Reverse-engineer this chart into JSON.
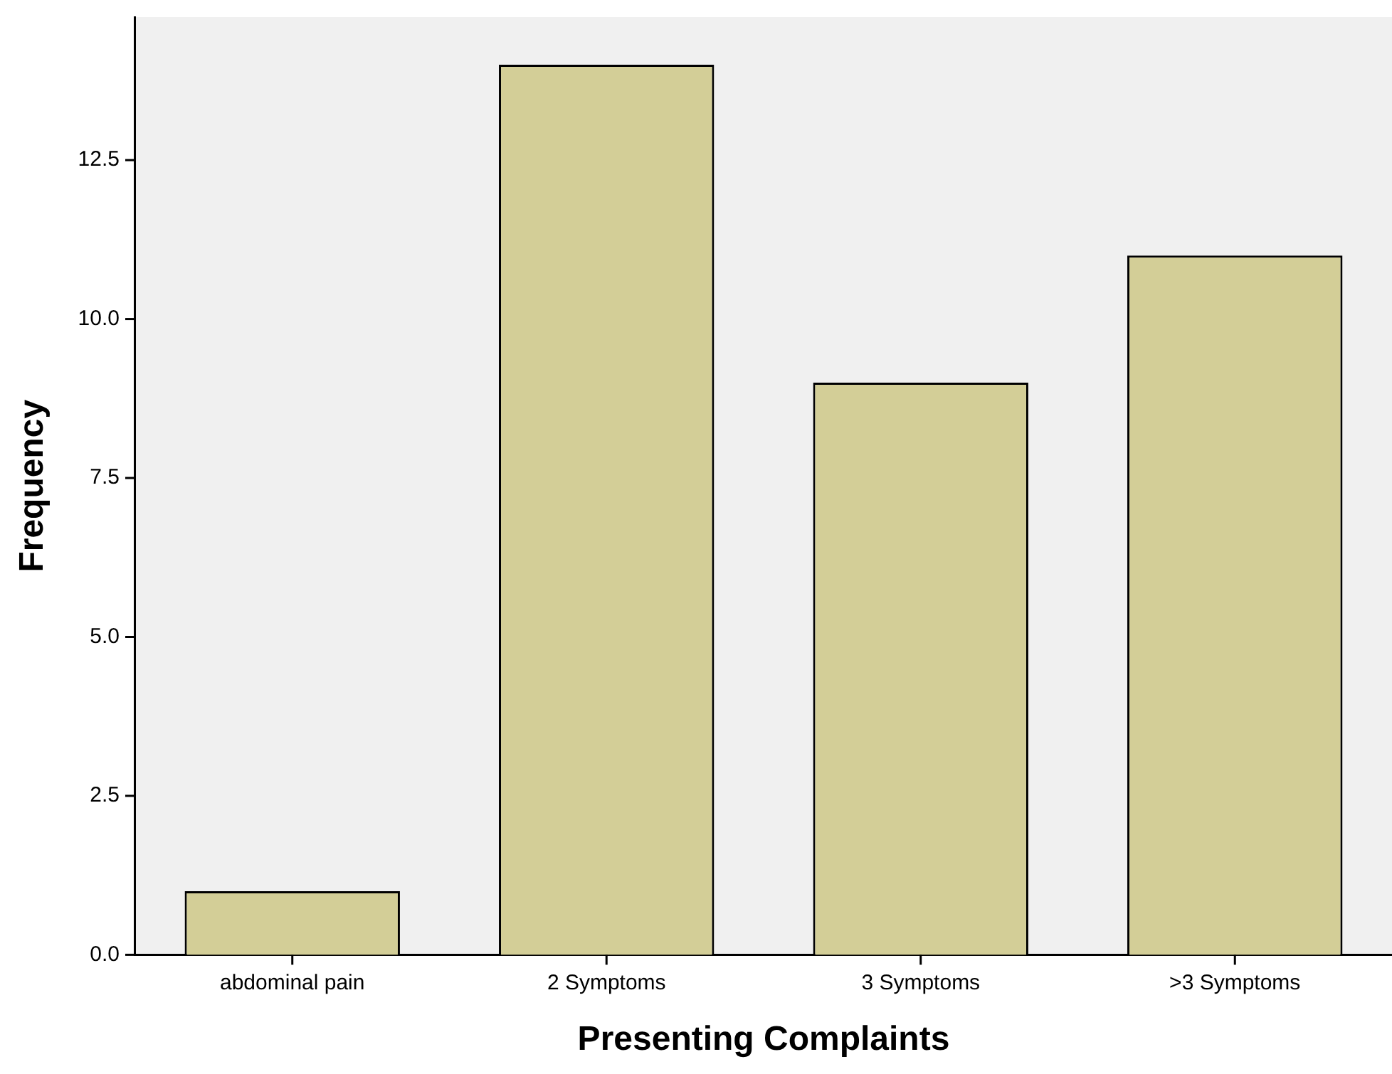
{
  "chart_data": {
    "type": "bar",
    "xlabel": "Presenting Complaints",
    "ylabel": "Frequency",
    "categories": [
      "abdominal pain",
      "2 Symptoms",
      "3 Symptoms",
      ">3 Symptoms"
    ],
    "values": [
      1,
      14,
      9,
      11
    ],
    "color": "#d3ce97",
    "ylim": [
      0,
      14.75
    ],
    "yticks": [
      {
        "value": 0,
        "label": "0.0"
      },
      {
        "value": 2.5,
        "label": "2.5"
      },
      {
        "value": 5,
        "label": "5.0"
      },
      {
        "value": 7.5,
        "label": "7.5"
      },
      {
        "value": 10,
        "label": "10.0"
      },
      {
        "value": 12.5,
        "label": "12.5"
      }
    ],
    "grid": false,
    "legend": false
  }
}
